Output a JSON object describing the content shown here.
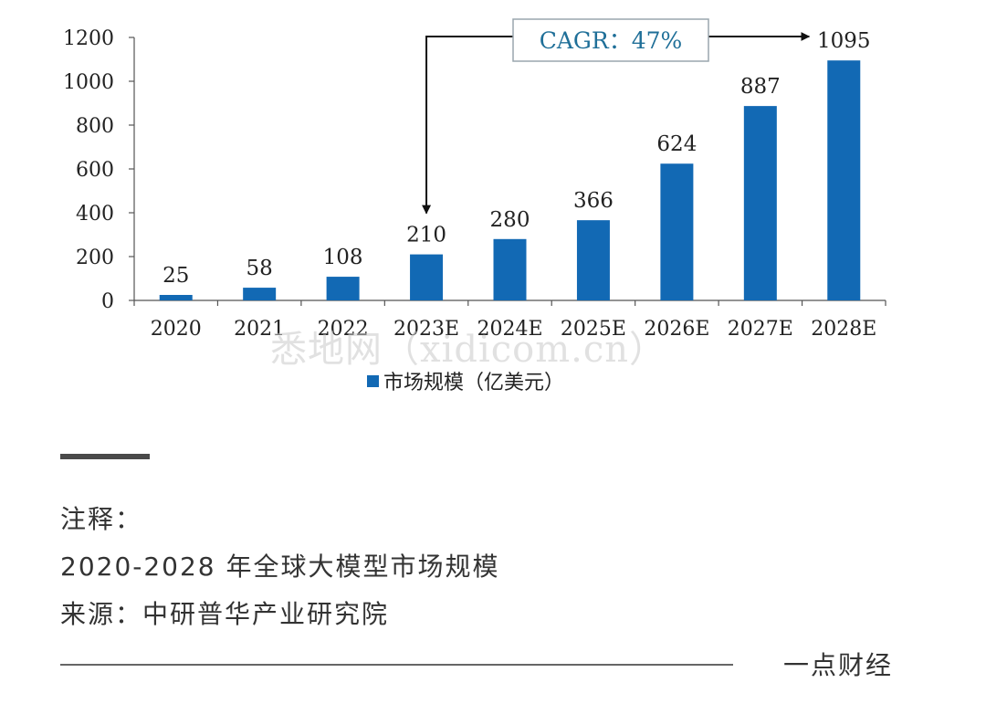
{
  "chart_data": {
    "type": "bar",
    "categories": [
      "2020",
      "2021",
      "2022",
      "2023E",
      "2024E",
      "2025E",
      "2026E",
      "2027E",
      "2028E"
    ],
    "values": [
      25,
      58,
      108,
      210,
      280,
      366,
      624,
      887,
      1095
    ],
    "ylim": [
      0,
      1200
    ],
    "yticks": [
      0,
      200,
      400,
      600,
      800,
      1000,
      1200
    ],
    "series": [
      {
        "name": "市场规模（亿美元）",
        "values": [
          25,
          58,
          108,
          210,
          280,
          366,
          624,
          887,
          1095
        ]
      }
    ],
    "legend": "bottom",
    "grid": false,
    "bar_color": "#1269b4",
    "annotation": {
      "text": "CAGR：47%",
      "from": "2023E",
      "to": "2028E"
    }
  },
  "legend_label": "市场规模（亿美元）",
  "watermark": "悉地网（xidicom.cn）",
  "notes": {
    "heading": "注释：",
    "line1": "2020-2028 年全球大模型市场规模",
    "line2": "来源：中研普华产业研究院"
  },
  "brand": "一点财经"
}
